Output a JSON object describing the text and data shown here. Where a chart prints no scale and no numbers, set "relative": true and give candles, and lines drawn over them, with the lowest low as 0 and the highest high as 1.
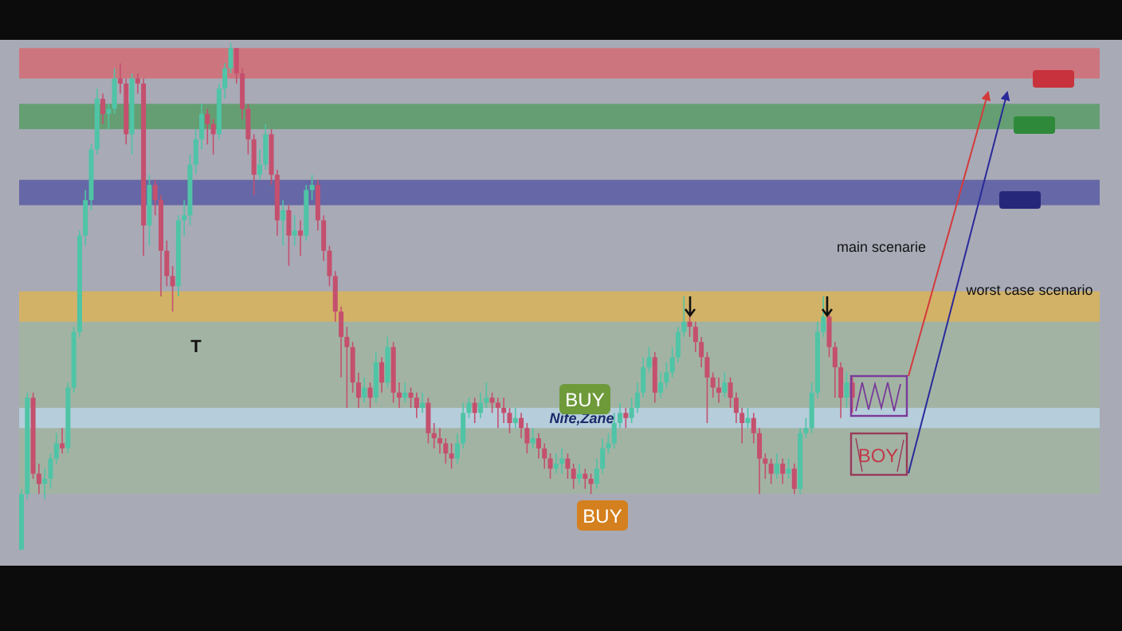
{
  "chart_data": {
    "type": "candlestick",
    "relative": true,
    "tick_labels": false,
    "categories": [
      null,
      null,
      null,
      null,
      null,
      null,
      null,
      null,
      null,
      null,
      null,
      null,
      null,
      null,
      null,
      null,
      null,
      null,
      null,
      null,
      null,
      null,
      null,
      null,
      null,
      null,
      null,
      null,
      null,
      null,
      null,
      null,
      null,
      null,
      null,
      null,
      null,
      null,
      null,
      null,
      null,
      null,
      null,
      null,
      null,
      null,
      null,
      null,
      null,
      null,
      null,
      null,
      null,
      null,
      null,
      null,
      null,
      null,
      null,
      null,
      null,
      null,
      null,
      null,
      null,
      null,
      null,
      null,
      null,
      null,
      null,
      null,
      null,
      null,
      null,
      null,
      null,
      null,
      null,
      null,
      null,
      null,
      null,
      null,
      null,
      null,
      null,
      null,
      null,
      null,
      null,
      null,
      null,
      null,
      null,
      null,
      null,
      null,
      null,
      null,
      null,
      null,
      null,
      null,
      null,
      null,
      null,
      null,
      null,
      null,
      null,
      null,
      null,
      null,
      null,
      null,
      null,
      null,
      null,
      null,
      null,
      null,
      null,
      null,
      null,
      null,
      null,
      null,
      null,
      null,
      null,
      null,
      null,
      null,
      null,
      null,
      null,
      null,
      null,
      null,
      null,
      null,
      null,
      null
    ],
    "ohlc": [
      [
        0,
        0.12,
        0,
        0.11
      ],
      [
        0.11,
        0.31,
        0.1,
        0.3
      ],
      [
        0.3,
        0.31,
        0.14,
        0.15
      ],
      [
        0.15,
        0.17,
        0.11,
        0.13
      ],
      [
        0.13,
        0.16,
        0.1,
        0.14
      ],
      [
        0.14,
        0.19,
        0.12,
        0.18
      ],
      [
        0.18,
        0.23,
        0.17,
        0.21
      ],
      [
        0.21,
        0.24,
        0.19,
        0.2
      ],
      [
        0.2,
        0.33,
        0.19,
        0.32
      ],
      [
        0.32,
        0.44,
        0.31,
        0.43
      ],
      [
        0.43,
        0.63,
        0.42,
        0.62
      ],
      [
        0.62,
        0.71,
        0.6,
        0.69
      ],
      [
        0.69,
        0.8,
        0.67,
        0.79
      ],
      [
        0.79,
        0.91,
        0.78,
        0.89
      ],
      [
        0.89,
        0.9,
        0.84,
        0.86
      ],
      [
        0.86,
        0.88,
        0.83,
        0.87
      ],
      [
        0.87,
        0.95,
        0.86,
        0.93
      ],
      [
        0.93,
        0.96,
        0.9,
        0.92
      ],
      [
        0.92,
        0.93,
        0.8,
        0.82
      ],
      [
        0.82,
        0.94,
        0.78,
        0.93
      ],
      [
        0.93,
        0.94,
        0.9,
        0.92
      ],
      [
        0.92,
        0.93,
        0.58,
        0.64
      ],
      [
        0.64,
        0.74,
        0.6,
        0.72
      ],
      [
        0.72,
        0.73,
        0.66,
        0.69
      ],
      [
        0.69,
        0.7,
        0.5,
        0.59
      ],
      [
        0.59,
        0.61,
        0.52,
        0.54
      ],
      [
        0.54,
        0.56,
        0.47,
        0.52
      ],
      [
        0.52,
        0.66,
        0.5,
        0.65
      ],
      [
        0.65,
        0.69,
        0.62,
        0.66
      ],
      [
        0.66,
        0.78,
        0.64,
        0.76
      ],
      [
        0.76,
        0.83,
        0.74,
        0.81
      ],
      [
        0.81,
        0.88,
        0.79,
        0.86
      ],
      [
        0.86,
        0.87,
        0.8,
        0.84
      ],
      [
        0.84,
        0.85,
        0.78,
        0.82
      ],
      [
        0.82,
        0.92,
        0.81,
        0.91
      ],
      [
        0.91,
        0.96,
        0.89,
        0.95
      ],
      [
        0.95,
        1.0,
        0.94,
        0.99
      ],
      [
        0.99,
        0.99,
        0.92,
        0.94
      ],
      [
        0.94,
        0.95,
        0.85,
        0.87
      ],
      [
        0.87,
        0.88,
        0.78,
        0.81
      ],
      [
        0.81,
        0.82,
        0.7,
        0.74
      ],
      [
        0.74,
        0.79,
        0.73,
        0.76
      ],
      [
        0.76,
        0.84,
        0.75,
        0.82
      ],
      [
        0.82,
        0.83,
        0.72,
        0.74
      ],
      [
        0.74,
        0.75,
        0.62,
        0.65
      ],
      [
        0.65,
        0.69,
        0.6,
        0.67
      ],
      [
        0.67,
        0.68,
        0.56,
        0.62
      ],
      [
        0.62,
        0.66,
        0.6,
        0.63
      ],
      [
        0.63,
        0.65,
        0.58,
        0.62
      ],
      [
        0.62,
        0.72,
        0.61,
        0.71
      ],
      [
        0.71,
        0.74,
        0.69,
        0.72
      ],
      [
        0.72,
        0.73,
        0.63,
        0.65
      ],
      [
        0.65,
        0.66,
        0.57,
        0.59
      ],
      [
        0.59,
        0.6,
        0.52,
        0.54
      ],
      [
        0.54,
        0.55,
        0.45,
        0.47
      ],
      [
        0.47,
        0.48,
        0.34,
        0.42
      ],
      [
        0.42,
        0.44,
        0.28,
        0.4
      ],
      [
        0.4,
        0.41,
        0.31,
        0.33
      ],
      [
        0.33,
        0.35,
        0.28,
        0.3
      ],
      [
        0.3,
        0.34,
        0.29,
        0.32
      ],
      [
        0.32,
        0.33,
        0.28,
        0.3
      ],
      [
        0.3,
        0.39,
        0.29,
        0.37
      ],
      [
        0.37,
        0.38,
        0.31,
        0.33
      ],
      [
        0.33,
        0.42,
        0.32,
        0.4
      ],
      [
        0.4,
        0.41,
        0.29,
        0.31
      ],
      [
        0.31,
        0.33,
        0.28,
        0.3
      ],
      [
        0.3,
        0.33,
        0.29,
        0.31
      ],
      [
        0.31,
        0.32,
        0.28,
        0.3
      ],
      [
        0.3,
        0.31,
        0.26,
        0.28
      ],
      [
        0.28,
        0.31,
        0.27,
        0.29
      ],
      [
        0.29,
        0.3,
        0.21,
        0.23
      ],
      [
        0.23,
        0.25,
        0.2,
        0.22
      ],
      [
        0.22,
        0.24,
        0.19,
        0.21
      ],
      [
        0.21,
        0.22,
        0.17,
        0.19
      ],
      [
        0.19,
        0.21,
        0.16,
        0.18
      ],
      [
        0.18,
        0.23,
        0.17,
        0.21
      ],
      [
        0.21,
        0.29,
        0.2,
        0.27
      ],
      [
        0.27,
        0.3,
        0.26,
        0.29
      ],
      [
        0.29,
        0.3,
        0.25,
        0.27
      ],
      [
        0.27,
        0.31,
        0.26,
        0.29
      ],
      [
        0.29,
        0.33,
        0.28,
        0.3
      ],
      [
        0.3,
        0.31,
        0.27,
        0.29
      ],
      [
        0.29,
        0.3,
        0.24,
        0.28
      ],
      [
        0.28,
        0.3,
        0.25,
        0.27
      ],
      [
        0.27,
        0.28,
        0.23,
        0.25
      ],
      [
        0.25,
        0.28,
        0.24,
        0.26
      ],
      [
        0.26,
        0.27,
        0.22,
        0.24
      ],
      [
        0.24,
        0.25,
        0.19,
        0.21
      ],
      [
        0.21,
        0.24,
        0.2,
        0.22
      ],
      [
        0.22,
        0.23,
        0.18,
        0.2
      ],
      [
        0.2,
        0.21,
        0.16,
        0.18
      ],
      [
        0.18,
        0.19,
        0.14,
        0.16
      ],
      [
        0.16,
        0.19,
        0.15,
        0.17
      ],
      [
        0.17,
        0.2,
        0.15,
        0.18
      ],
      [
        0.18,
        0.19,
        0.14,
        0.16
      ],
      [
        0.16,
        0.17,
        0.12,
        0.14
      ],
      [
        0.14,
        0.17,
        0.13,
        0.15
      ],
      [
        0.15,
        0.16,
        0.12,
        0.14
      ],
      [
        0.14,
        0.15,
        0.11,
        0.13
      ],
      [
        0.13,
        0.18,
        0.12,
        0.16
      ],
      [
        0.16,
        0.22,
        0.15,
        0.2
      ],
      [
        0.2,
        0.23,
        0.19,
        0.21
      ],
      [
        0.21,
        0.27,
        0.2,
        0.25
      ],
      [
        0.25,
        0.29,
        0.24,
        0.27
      ],
      [
        0.27,
        0.28,
        0.24,
        0.26
      ],
      [
        0.26,
        0.3,
        0.25,
        0.28
      ],
      [
        0.28,
        0.33,
        0.27,
        0.31
      ],
      [
        0.31,
        0.38,
        0.3,
        0.36
      ],
      [
        0.36,
        0.4,
        0.35,
        0.38
      ],
      [
        0.38,
        0.39,
        0.29,
        0.31
      ],
      [
        0.31,
        0.35,
        0.3,
        0.33
      ],
      [
        0.33,
        0.37,
        0.32,
        0.35
      ],
      [
        0.35,
        0.4,
        0.34,
        0.38
      ],
      [
        0.38,
        0.44,
        0.37,
        0.43
      ],
      [
        0.43,
        0.5,
        0.42,
        0.45
      ],
      [
        0.45,
        0.46,
        0.42,
        0.44
      ],
      [
        0.44,
        0.45,
        0.39,
        0.41
      ],
      [
        0.41,
        0.42,
        0.36,
        0.38
      ],
      [
        0.38,
        0.39,
        0.25,
        0.34
      ],
      [
        0.34,
        0.35,
        0.3,
        0.32
      ],
      [
        0.32,
        0.34,
        0.29,
        0.31
      ],
      [
        0.31,
        0.35,
        0.3,
        0.33
      ],
      [
        0.33,
        0.34,
        0.28,
        0.3
      ],
      [
        0.3,
        0.31,
        0.25,
        0.27
      ],
      [
        0.27,
        0.28,
        0.21,
        0.25
      ],
      [
        0.25,
        0.28,
        0.24,
        0.26
      ],
      [
        0.26,
        0.27,
        0.21,
        0.23
      ],
      [
        0.23,
        0.24,
        0.11,
        0.18
      ],
      [
        0.18,
        0.19,
        0.14,
        0.17
      ],
      [
        0.17,
        0.18,
        0.13,
        0.15
      ],
      [
        0.15,
        0.19,
        0.14,
        0.17
      ],
      [
        0.17,
        0.18,
        0.13,
        0.15
      ],
      [
        0.15,
        0.18,
        0.14,
        0.16
      ],
      [
        0.16,
        0.17,
        0.11,
        0.12
      ],
      [
        0.12,
        0.24,
        0.11,
        0.23
      ],
      [
        0.23,
        0.26,
        0.22,
        0.24
      ],
      [
        0.24,
        0.33,
        0.23,
        0.31
      ],
      [
        0.31,
        0.45,
        0.3,
        0.43
      ],
      [
        0.43,
        0.5,
        0.42,
        0.46
      ],
      [
        0.46,
        0.47,
        0.38,
        0.4
      ],
      [
        0.4,
        0.41,
        0.3,
        0.36
      ],
      [
        0.36,
        0.37,
        0.26,
        0.3
      ],
      [
        0.3,
        0.35,
        0.28,
        0.33
      ],
      [
        0.33,
        0.34,
        0.27,
        0.3
      ]
    ],
    "bands": [
      {
        "axis": "y",
        "from": 0.11,
        "to": 0.45,
        "color": "#9cbf8e"
      },
      {
        "axis": "y",
        "from": 0.93,
        "to": 0.99,
        "color": "#d9636b"
      },
      {
        "axis": "y",
        "from": 0.83,
        "to": 0.88,
        "color": "#4f9a5b"
      },
      {
        "axis": "y",
        "from": 0.68,
        "to": 0.73,
        "color": "#5050a0"
      },
      {
        "axis": "y",
        "from": 0.45,
        "to": 0.51,
        "color": "#e0b44c"
      },
      {
        "axis": "y",
        "from": 0.24,
        "to": 0.28,
        "color": "#bcd6ee",
        "label": "Nife,Zane"
      }
    ],
    "annotations": [
      "T",
      "BUY",
      "BUY",
      "main scenarie",
      "worst case scenario",
      "BOY"
    ]
  }
}
